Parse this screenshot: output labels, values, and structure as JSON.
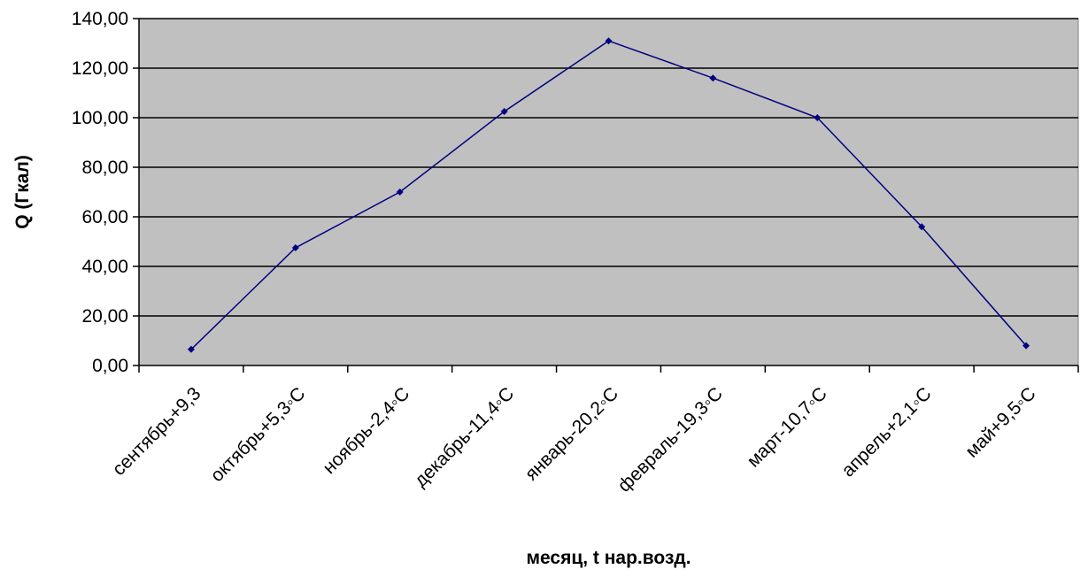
{
  "chart_data": {
    "type": "line",
    "title": "",
    "xlabel": "месяц, t нар.возд.",
    "ylabel": "Q (Гкал)",
    "ylim": [
      0,
      140
    ],
    "y_ticks": [
      "0,00",
      "20,00",
      "40,00",
      "60,00",
      "80,00",
      "100,00",
      "120,00",
      "140,00"
    ],
    "categories": [
      "сентябрь+9,3",
      "октябрь+5,3◦С",
      "ноябрь-2,4◦С",
      "декабрь-11,4◦С",
      "январь-20,2◦С",
      "февраль-19,3◦С",
      "март-10,7◦С",
      "апрель+2,1◦С",
      "май+9,5◦С"
    ],
    "series": [
      {
        "values": [
          6.5,
          47.5,
          70,
          102.5,
          131,
          116,
          100,
          56,
          8
        ],
        "color": "#000080"
      }
    ],
    "grid": true,
    "legend": "none",
    "plot_background": "#c0c0c0"
  }
}
